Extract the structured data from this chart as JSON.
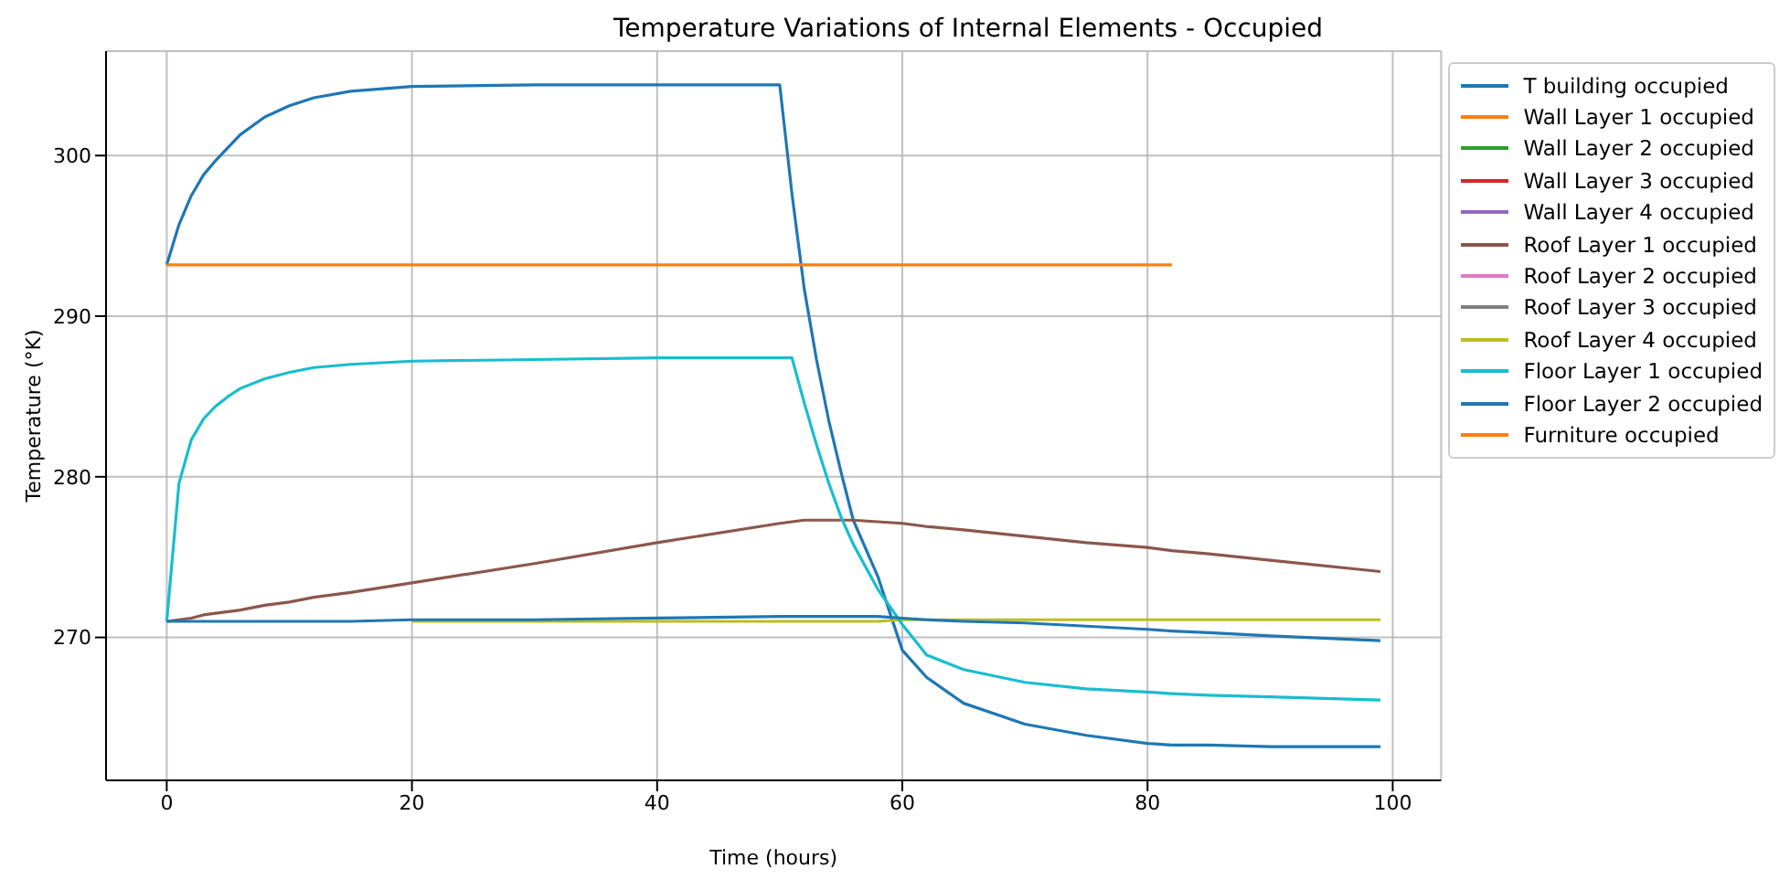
{
  "chart_data": {
    "type": "line",
    "title": "Temperature Variations of Internal Elements - Occupied",
    "xlabel": "Time (hours)",
    "ylabel": "Temperature (°K)",
    "x": [
      0,
      1,
      2,
      3,
      4,
      5,
      6,
      8,
      10,
      12,
      15,
      20,
      30,
      40,
      50,
      51,
      52,
      53,
      54,
      55,
      56,
      58,
      60,
      62,
      65,
      70,
      75,
      80,
      82,
      85,
      90,
      99
    ],
    "xlim": [
      -4.95,
      103.95
    ],
    "xticks": [
      0,
      20,
      40,
      60,
      80,
      100
    ],
    "ylim": [
      261.1,
      306.5
    ],
    "yticks": [
      270,
      280,
      290,
      300
    ],
    "grid": true,
    "legend": "top right",
    "series": [
      {
        "name": "T building occupied",
        "color": "#1f77b4",
        "values": [
          293.2,
          295.7,
          297.5,
          298.8,
          299.7,
          300.5,
          301.3,
          302.4,
          303.1,
          303.6,
          304.0,
          304.3,
          304.4,
          304.4,
          304.4,
          297.6,
          291.7,
          287.3,
          283.5,
          280.3,
          277.3,
          273.8,
          269.2,
          267.5,
          265.9,
          264.6,
          263.9,
          263.4,
          263.3,
          263.3,
          263.2,
          263.2
        ]
      },
      {
        "name": "Wall Layer 1 occupied",
        "color": "#ff7f0e",
        "values": [
          null,
          null,
          null,
          null,
          null,
          null,
          null,
          null,
          null,
          null,
          null,
          null,
          null,
          null,
          null,
          null,
          null,
          null,
          null,
          null,
          null,
          null,
          null,
          null,
          null,
          null,
          null,
          null,
          null,
          null,
          null,
          null
        ]
      },
      {
        "name": "Wall Layer 2 occupied",
        "color": "#2ca02c",
        "values": [
          null,
          null,
          null,
          null,
          null,
          null,
          null,
          null,
          null,
          null,
          null,
          null,
          null,
          null,
          null,
          null,
          null,
          null,
          null,
          null,
          null,
          null,
          null,
          null,
          null,
          null,
          null,
          null,
          null,
          null,
          null,
          null
        ]
      },
      {
        "name": "Wall Layer 3 occupied",
        "color": "#d62728",
        "values": [
          null,
          null,
          null,
          null,
          null,
          null,
          null,
          null,
          null,
          null,
          null,
          null,
          null,
          null,
          null,
          null,
          null,
          null,
          null,
          null,
          null,
          null,
          null,
          null,
          null,
          null,
          null,
          null,
          null,
          null,
          null,
          null
        ]
      },
      {
        "name": "Wall Layer 4 occupied",
        "color": "#9467bd",
        "values": [
          null,
          null,
          null,
          null,
          null,
          null,
          null,
          null,
          null,
          null,
          null,
          null,
          null,
          null,
          null,
          null,
          null,
          null,
          null,
          null,
          null,
          null,
          null,
          null,
          null,
          null,
          null,
          null,
          null,
          null,
          null,
          null
        ]
      },
      {
        "name": "Roof Layer 1 occupied",
        "color": "#8c564b",
        "values": [
          271.0,
          271.1,
          271.2,
          271.4,
          271.5,
          271.6,
          271.7,
          272.0,
          272.2,
          272.5,
          272.8,
          273.4,
          274.6,
          275.9,
          277.1,
          277.2,
          277.3,
          277.3,
          277.3,
          277.3,
          277.3,
          277.2,
          277.1,
          276.9,
          276.7,
          276.3,
          275.9,
          275.6,
          275.4,
          275.2,
          274.8,
          274.1
        ]
      },
      {
        "name": "Roof Layer 2 occupied",
        "color": "#e377c2",
        "values": [
          null,
          null,
          null,
          null,
          null,
          null,
          null,
          null,
          null,
          null,
          null,
          null,
          null,
          null,
          null,
          null,
          null,
          null,
          null,
          null,
          null,
          null,
          null,
          null,
          null,
          null,
          null,
          null,
          null,
          null,
          null,
          null
        ]
      },
      {
        "name": "Roof Layer 3 occupied",
        "color": "#7f7f7f",
        "values": [
          null,
          null,
          null,
          null,
          null,
          null,
          null,
          null,
          null,
          null,
          null,
          null,
          null,
          null,
          null,
          null,
          null,
          null,
          null,
          null,
          null,
          null,
          null,
          null,
          null,
          null,
          null,
          null,
          null,
          null,
          null,
          null
        ]
      },
      {
        "name": "Roof Layer 4 occupied",
        "color": "#bcbd22",
        "values": [
          null,
          null,
          null,
          null,
          null,
          null,
          null,
          null,
          null,
          null,
          null,
          271.0,
          271.0,
          271.0,
          271.0,
          271.0,
          271.0,
          271.0,
          271.0,
          271.0,
          271.0,
          271.0,
          271.1,
          271.1,
          271.1,
          271.1,
          271.1,
          271.1,
          271.1,
          271.1,
          271.1,
          271.1
        ]
      },
      {
        "name": "Floor Layer 1 occupied",
        "color": "#17becf",
        "values": [
          271.0,
          279.6,
          282.3,
          283.6,
          284.4,
          285.0,
          285.5,
          286.1,
          286.5,
          286.8,
          287.0,
          287.2,
          287.3,
          287.4,
          287.4,
          287.4,
          284.6,
          282.0,
          279.6,
          277.5,
          275.8,
          273.0,
          270.8,
          268.9,
          268.0,
          267.2,
          266.8,
          266.6,
          266.5,
          266.4,
          266.3,
          266.1
        ]
      },
      {
        "name": "Floor Layer 2 occupied",
        "color": "#1f77b4",
        "values": [
          271.0,
          271.0,
          271.0,
          271.0,
          271.0,
          271.0,
          271.0,
          271.0,
          271.0,
          271.0,
          271.0,
          271.1,
          271.1,
          271.2,
          271.3,
          271.3,
          271.3,
          271.3,
          271.3,
          271.3,
          271.3,
          271.3,
          271.2,
          271.1,
          271.0,
          270.9,
          270.7,
          270.5,
          270.4,
          270.3,
          270.1,
          269.8
        ]
      },
      {
        "name": "Furniture occupied",
        "color": "#ff7f0e",
        "values": [
          293.2,
          293.2,
          293.2,
          293.2,
          293.2,
          293.2,
          293.2,
          293.2,
          293.2,
          293.2,
          293.2,
          293.2,
          293.2,
          293.2,
          293.2,
          293.2,
          293.2,
          293.2,
          293.2,
          293.2,
          293.2,
          293.2,
          293.2,
          293.2,
          293.2,
          293.2,
          293.2,
          293.2,
          293.2,
          null,
          null,
          null
        ]
      }
    ]
  }
}
